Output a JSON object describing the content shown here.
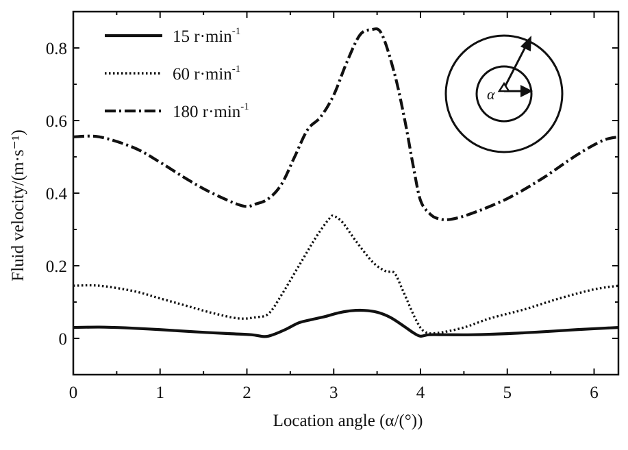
{
  "chart_data": {
    "type": "line",
    "title": "",
    "xlabel": "Location angle (α/(°))",
    "ylabel": "Fluid velocity/(m·s⁻¹)",
    "xlim": [
      0,
      6.28
    ],
    "ylim": [
      -0.1,
      0.9
    ],
    "xticks": [
      0,
      1,
      2,
      3,
      4,
      5,
      6
    ],
    "yticks": [
      0,
      0.2,
      0.4,
      0.6,
      0.8
    ],
    "xtick_labels": [
      "0",
      "1",
      "2",
      "3",
      "4",
      "5",
      "6"
    ],
    "ytick_labels": [
      "0",
      "0.2",
      "0.4",
      "0.6",
      "0.8"
    ],
    "grid": false,
    "legend_position": "top-left",
    "series": [
      {
        "name": "15 r·min⁻¹",
        "legend_base": "15 r·min",
        "legend_sup": "-1",
        "style": "solid",
        "x": [
          0,
          0.3,
          0.6,
          1.0,
          1.4,
          1.8,
          2.05,
          2.2,
          2.3,
          2.45,
          2.6,
          2.75,
          2.9,
          3.05,
          3.2,
          3.35,
          3.5,
          3.65,
          3.8,
          3.92,
          4.0,
          4.1,
          4.3,
          4.6,
          5.0,
          5.4,
          5.8,
          6.28
        ],
        "y": [
          0.03,
          0.031,
          0.029,
          0.024,
          0.018,
          0.013,
          0.01,
          0.005,
          0.01,
          0.025,
          0.043,
          0.052,
          0.06,
          0.07,
          0.076,
          0.077,
          0.072,
          0.058,
          0.035,
          0.015,
          0.006,
          0.01,
          0.01,
          0.01,
          0.013,
          0.018,
          0.024,
          0.03
        ]
      },
      {
        "name": "60 r·min⁻¹",
        "legend_base": "60 r·min",
        "legend_sup": "-1",
        "style": "dotted",
        "x": [
          0,
          0.3,
          0.7,
          1.0,
          1.3,
          1.6,
          1.9,
          2.1,
          2.25,
          2.4,
          2.6,
          2.8,
          2.95,
          3.0,
          3.1,
          3.25,
          3.45,
          3.6,
          3.7,
          3.8,
          3.95,
          4.05,
          4.2,
          4.5,
          4.8,
          5.2,
          5.6,
          6.0,
          6.28
        ],
        "y": [
          0.145,
          0.145,
          0.13,
          0.11,
          0.09,
          0.07,
          0.055,
          0.058,
          0.068,
          0.12,
          0.2,
          0.28,
          0.33,
          0.337,
          0.32,
          0.27,
          0.21,
          0.185,
          0.18,
          0.13,
          0.05,
          0.018,
          0.015,
          0.03,
          0.055,
          0.08,
          0.11,
          0.135,
          0.145
        ]
      },
      {
        "name": "180 r·min⁻¹",
        "legend_base": "180 r·min",
        "legend_sup": "-1",
        "style": "dash-dot",
        "x": [
          0,
          0.3,
          0.7,
          1.0,
          1.3,
          1.6,
          1.95,
          2.1,
          2.25,
          2.4,
          2.55,
          2.7,
          2.85,
          3.0,
          3.15,
          3.3,
          3.43,
          3.55,
          3.7,
          3.82,
          3.92,
          4.0,
          4.1,
          4.2,
          4.35,
          4.6,
          5.0,
          5.4,
          5.8,
          6.1,
          6.28
        ],
        "y": [
          0.555,
          0.555,
          0.525,
          0.485,
          0.44,
          0.4,
          0.365,
          0.37,
          0.385,
          0.425,
          0.5,
          0.575,
          0.61,
          0.67,
          0.76,
          0.835,
          0.85,
          0.84,
          0.73,
          0.6,
          0.47,
          0.38,
          0.345,
          0.33,
          0.328,
          0.345,
          0.385,
          0.44,
          0.505,
          0.545,
          0.555
        ]
      }
    ],
    "inset": {
      "label": "α"
    }
  }
}
